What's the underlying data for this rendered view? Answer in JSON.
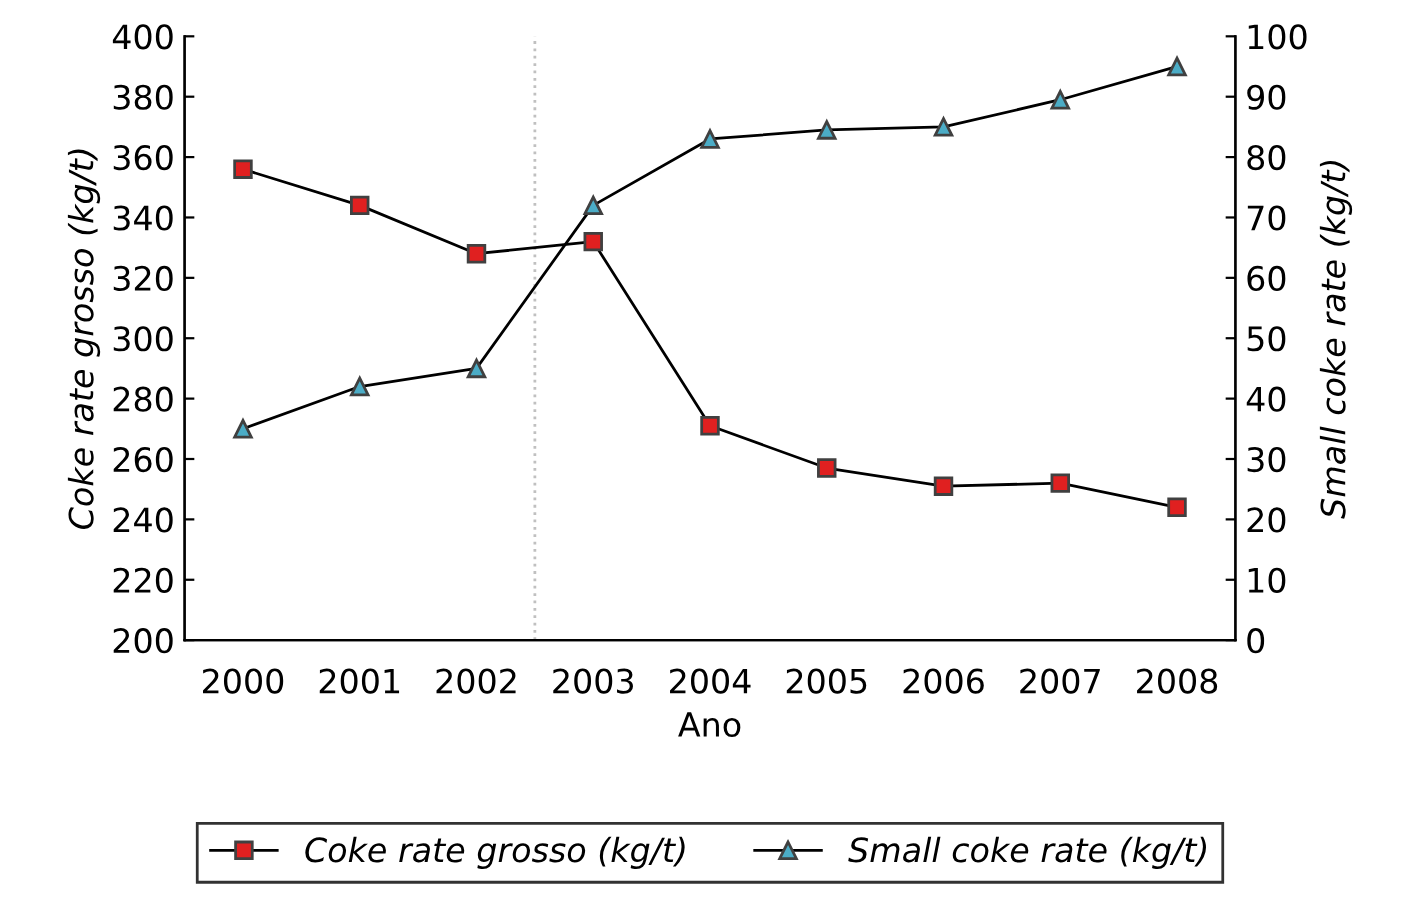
{
  "chart_data": {
    "type": "line",
    "xlabel": "Ano",
    "ylabel": "Coke rate grosso (kg/t)",
    "y2label": "Small coke rate (kg/t)",
    "categories": [
      "2000",
      "2001",
      "2002",
      "2003",
      "2004",
      "2005",
      "2006",
      "2007",
      "2008"
    ],
    "series": [
      {
        "name": "Coke rate grosso (kg/t)",
        "color": "#e02020",
        "marker": "square",
        "values": [
          356,
          344,
          328,
          332,
          271,
          257,
          251,
          252,
          244
        ]
      },
      {
        "name": "Small coke rate (kg/t)",
        "color": "#4bacc6",
        "marker": "triangle",
        "axis": "y2",
        "values": [
          35,
          42,
          45,
          72,
          83,
          84.5,
          85,
          89.5,
          95
        ]
      }
    ],
    "ylim": [
      200,
      400
    ],
    "yticks": [
      200,
      220,
      240,
      260,
      280,
      300,
      320,
      340,
      360,
      380,
      400
    ],
    "y2lim": [
      0,
      100
    ],
    "y2ticks": [
      0,
      10,
      20,
      30,
      40,
      50,
      60,
      70,
      80,
      90,
      100
    ],
    "legend": "bottom",
    "grid": false,
    "line_style": "solid"
  }
}
